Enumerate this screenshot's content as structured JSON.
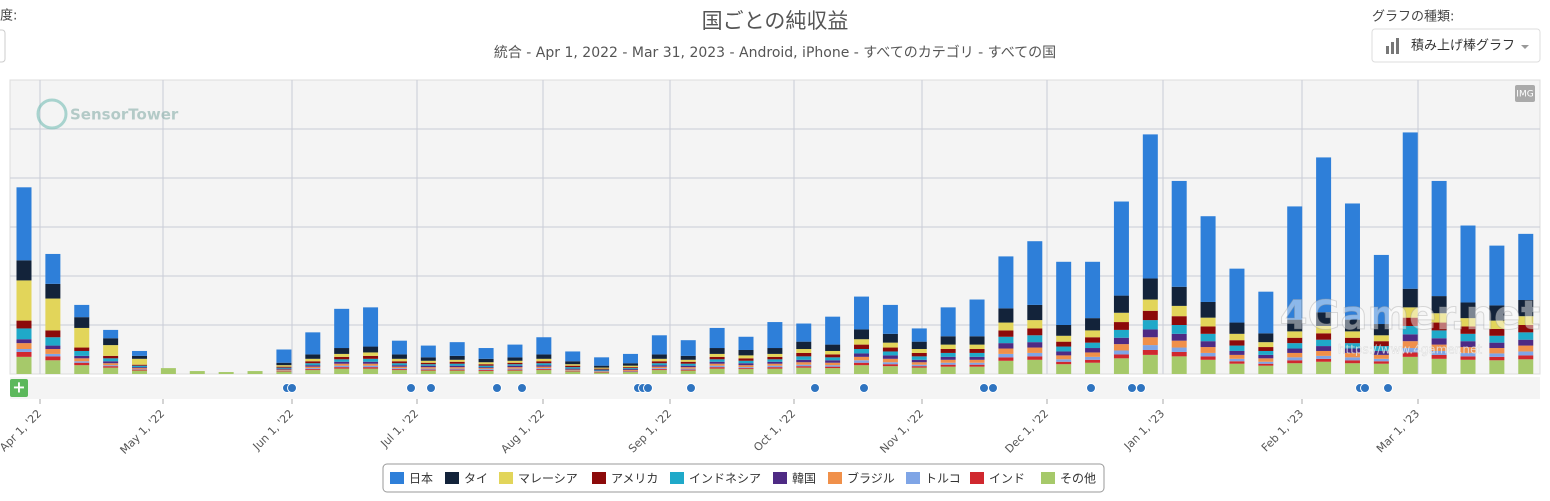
{
  "controls": {
    "left_label": "度:",
    "chart_type_label": "グラフの種類:",
    "chart_type_value": "積み上げ棒グラフ",
    "img_button": "IMG",
    "add_button": "+"
  },
  "watermarks": {
    "brand": "SensorTower",
    "site": "4Gamer.net",
    "url": "https://www.4gamer.net"
  },
  "chart_data": {
    "type": "stacked_bar",
    "title": "国ごとの純収益",
    "subtitle": "統合 - Apr 1, 2022 - Mar 31, 2023 - Android, iPhone - すべてのカテゴリ - すべての国",
    "x_labels": [
      "Apr 1, '22",
      "May 1, '22",
      "Jun 1, '22",
      "Jul 1, '22",
      "Aug 1, '22",
      "Sep 1, '22",
      "Oct 1, '22",
      "Nov 1, '22",
      "Dec 1, '22",
      "Jan 1, '23",
      "Feb 1, '23",
      "Mar 1, '23"
    ],
    "ylim": [
      0,
      6
    ],
    "grid": true,
    "series": [
      {
        "name": "日本",
        "color": "#2e7fd9",
        "values": [
          1.49,
          0.61,
          0.25,
          0.17,
          0.1,
          0,
          0,
          0,
          0,
          0.27,
          0.45,
          0.8,
          0.8,
          0.28,
          0.24,
          0.28,
          0.22,
          0.26,
          0.35,
          0.2,
          0.17,
          0.19,
          0.39,
          0.32,
          0.41,
          0.27,
          0.53,
          0.37,
          0.57,
          0.67,
          0.59,
          0.27,
          0.59,
          0.75,
          1.06,
          1.3,
          1.29,
          1.15,
          1.92,
          2.94,
          2.16,
          1.75,
          1.1,
          0.85,
          2.31,
          3.16,
          2.37,
          1.41,
          3.19,
          2.35,
          1.57,
          1.22,
          1.35
        ]
      },
      {
        "name": "タイ",
        "color": "#13233a",
        "values": [
          0.41,
          0.3,
          0.22,
          0.14,
          0.06,
          0,
          0,
          0,
          0,
          0.05,
          0.09,
          0.12,
          0.12,
          0.09,
          0.07,
          0.08,
          0.07,
          0.07,
          0.09,
          0.06,
          0.04,
          0.05,
          0.09,
          0.08,
          0.12,
          0.11,
          0.12,
          0.15,
          0.13,
          0.2,
          0.18,
          0.15,
          0.17,
          0.17,
          0.29,
          0.31,
          0.22,
          0.25,
          0.35,
          0.43,
          0.39,
          0.32,
          0.23,
          0.18,
          0.24,
          0.28,
          0.24,
          0.23,
          0.38,
          0.35,
          0.32,
          0.31,
          0.33
        ]
      },
      {
        "name": "マレーシア",
        "color": "#e2d55a",
        "values": [
          0.82,
          0.65,
          0.4,
          0.22,
          0.12,
          0,
          0,
          0,
          0,
          0.03,
          0.05,
          0.06,
          0.07,
          0.05,
          0.04,
          0.04,
          0.04,
          0.04,
          0.05,
          0.03,
          0.02,
          0.03,
          0.05,
          0.04,
          0.06,
          0.06,
          0.06,
          0.08,
          0.07,
          0.11,
          0.1,
          0.08,
          0.09,
          0.09,
          0.16,
          0.17,
          0.12,
          0.14,
          0.19,
          0.23,
          0.21,
          0.18,
          0.13,
          0.1,
          0.13,
          0.15,
          0.13,
          0.12,
          0.21,
          0.19,
          0.17,
          0.17,
          0.18
        ]
      },
      {
        "name": "アメリカ",
        "color": "#8c0a0a",
        "values": [
          0.16,
          0.14,
          0.07,
          0.05,
          0.02,
          0,
          0,
          0,
          0,
          0.02,
          0.04,
          0.05,
          0.06,
          0.04,
          0.03,
          0.04,
          0.03,
          0.03,
          0.04,
          0.03,
          0.02,
          0.02,
          0.04,
          0.04,
          0.05,
          0.05,
          0.05,
          0.07,
          0.06,
          0.09,
          0.08,
          0.07,
          0.08,
          0.08,
          0.13,
          0.14,
          0.1,
          0.11,
          0.16,
          0.19,
          0.18,
          0.15,
          0.11,
          0.08,
          0.11,
          0.13,
          0.11,
          0.1,
          0.17,
          0.16,
          0.15,
          0.14,
          0.15
        ]
      },
      {
        "name": "インドネシア",
        "color": "#1fa9c9",
        "values": [
          0.22,
          0.17,
          0.1,
          0.06,
          0.03,
          0,
          0,
          0,
          0,
          0.02,
          0.04,
          0.05,
          0.06,
          0.04,
          0.03,
          0.04,
          0.03,
          0.03,
          0.04,
          0.03,
          0.02,
          0.02,
          0.04,
          0.04,
          0.05,
          0.05,
          0.05,
          0.07,
          0.06,
          0.09,
          0.08,
          0.07,
          0.08,
          0.08,
          0.13,
          0.14,
          0.1,
          0.11,
          0.16,
          0.19,
          0.18,
          0.15,
          0.11,
          0.08,
          0.11,
          0.13,
          0.11,
          0.1,
          0.17,
          0.16,
          0.15,
          0.14,
          0.15
        ]
      },
      {
        "name": "韓国",
        "color": "#4e2a84",
        "values": [
          0.08,
          0.07,
          0.05,
          0.04,
          0.02,
          0,
          0,
          0,
          0,
          0.02,
          0.03,
          0.04,
          0.04,
          0.03,
          0.03,
          0.03,
          0.02,
          0.03,
          0.03,
          0.02,
          0.01,
          0.02,
          0.03,
          0.03,
          0.04,
          0.04,
          0.04,
          0.05,
          0.05,
          0.07,
          0.07,
          0.05,
          0.06,
          0.06,
          0.11,
          0.11,
          0.08,
          0.09,
          0.13,
          0.16,
          0.14,
          0.12,
          0.08,
          0.07,
          0.09,
          0.1,
          0.09,
          0.08,
          0.14,
          0.13,
          0.12,
          0.11,
          0.12
        ]
      },
      {
        "name": "ブラジル",
        "color": "#f0904a",
        "values": [
          0.12,
          0.1,
          0.06,
          0.04,
          0.02,
          0,
          0,
          0,
          0,
          0.02,
          0.03,
          0.04,
          0.04,
          0.03,
          0.03,
          0.03,
          0.02,
          0.03,
          0.03,
          0.02,
          0.01,
          0.02,
          0.03,
          0.03,
          0.04,
          0.04,
          0.04,
          0.05,
          0.05,
          0.07,
          0.07,
          0.05,
          0.06,
          0.06,
          0.11,
          0.11,
          0.08,
          0.09,
          0.13,
          0.16,
          0.14,
          0.12,
          0.08,
          0.07,
          0.09,
          0.1,
          0.09,
          0.08,
          0.14,
          0.13,
          0.12,
          0.11,
          0.12
        ]
      },
      {
        "name": "トルコ",
        "color": "#7fa5e6",
        "values": [
          0.06,
          0.05,
          0.03,
          0.02,
          0.01,
          0,
          0,
          0,
          0,
          0.01,
          0.02,
          0.03,
          0.03,
          0.02,
          0.02,
          0.02,
          0.02,
          0.02,
          0.02,
          0.01,
          0.01,
          0.01,
          0.02,
          0.02,
          0.03,
          0.02,
          0.03,
          0.03,
          0.03,
          0.05,
          0.04,
          0.03,
          0.04,
          0.04,
          0.07,
          0.07,
          0.05,
          0.06,
          0.08,
          0.1,
          0.09,
          0.07,
          0.05,
          0.04,
          0.06,
          0.06,
          0.06,
          0.05,
          0.09,
          0.08,
          0.07,
          0.07,
          0.08
        ]
      },
      {
        "name": "インド",
        "color": "#d0282e",
        "values": [
          0.1,
          0.08,
          0.05,
          0.03,
          0.02,
          0,
          0,
          0,
          0,
          0.01,
          0.02,
          0.03,
          0.03,
          0.02,
          0.02,
          0.02,
          0.02,
          0.02,
          0.02,
          0.01,
          0.01,
          0.01,
          0.02,
          0.02,
          0.03,
          0.02,
          0.03,
          0.03,
          0.03,
          0.05,
          0.04,
          0.03,
          0.04,
          0.04,
          0.07,
          0.07,
          0.05,
          0.06,
          0.08,
          0.1,
          0.09,
          0.07,
          0.05,
          0.04,
          0.06,
          0.06,
          0.06,
          0.05,
          0.09,
          0.08,
          0.07,
          0.07,
          0.08
        ]
      },
      {
        "name": "その他",
        "color": "#a6c96a",
        "values": [
          0.35,
          0.28,
          0.18,
          0.13,
          0.07,
          0.12,
          0.06,
          0.04,
          0.06,
          0.05,
          0.08,
          0.11,
          0.11,
          0.08,
          0.07,
          0.07,
          0.06,
          0.07,
          0.08,
          0.05,
          0.03,
          0.04,
          0.08,
          0.07,
          0.11,
          0.1,
          0.11,
          0.13,
          0.12,
          0.18,
          0.16,
          0.13,
          0.15,
          0.15,
          0.27,
          0.29,
          0.2,
          0.23,
          0.32,
          0.39,
          0.36,
          0.29,
          0.21,
          0.17,
          0.22,
          0.25,
          0.22,
          0.21,
          0.35,
          0.31,
          0.29,
          0.28,
          0.3
        ]
      }
    ]
  }
}
